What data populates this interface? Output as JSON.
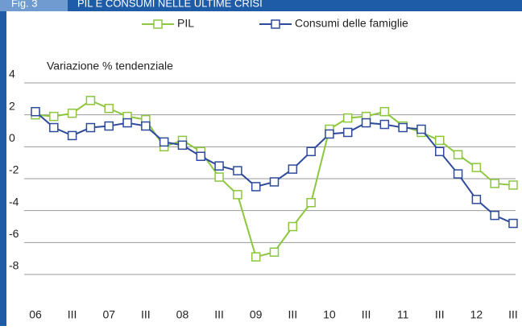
{
  "chart_data": {
    "type": "line",
    "fig_label": "Fig. 3",
    "title": "PIL E CONSUMI NELLE ULTIME CRISI",
    "y_label": "Variazione % tendenziale",
    "categories": [
      "06",
      null,
      "III",
      null,
      "07",
      null,
      "III",
      null,
      "08",
      null,
      "III",
      null,
      "09",
      null,
      "III",
      null,
      "10",
      null,
      "III",
      null,
      "11",
      null,
      "III",
      null,
      "12",
      null,
      "III"
    ],
    "series": [
      {
        "name": "PIL",
        "color": "#8dc63f",
        "values": [
          2.0,
          1.9,
          2.1,
          2.9,
          2.4,
          1.9,
          1.7,
          0.0,
          0.4,
          -0.3,
          -1.9,
          -3.0,
          -6.9,
          -6.6,
          -5.0,
          -3.5,
          1.1,
          1.8,
          1.9,
          2.2,
          1.3,
          0.9,
          0.4,
          -0.5,
          -1.3,
          -2.3,
          -2.4
        ]
      },
      {
        "name": "Consumi delle famiglie",
        "color": "#2e4a9b",
        "values": [
          2.2,
          1.2,
          0.7,
          1.2,
          1.3,
          1.5,
          1.3,
          0.3,
          0.1,
          -0.6,
          -1.2,
          -1.5,
          -2.5,
          -2.2,
          -1.4,
          -0.3,
          0.8,
          0.9,
          1.5,
          1.4,
          1.2,
          1.1,
          -0.3,
          -1.7,
          -3.3,
          -4.3,
          -4.8
        ]
      }
    ],
    "ylim": [
      -8,
      4
    ],
    "yticks": [
      -8,
      -6,
      -4,
      -2,
      0,
      2,
      4
    ],
    "grid": true,
    "legend": "top"
  }
}
